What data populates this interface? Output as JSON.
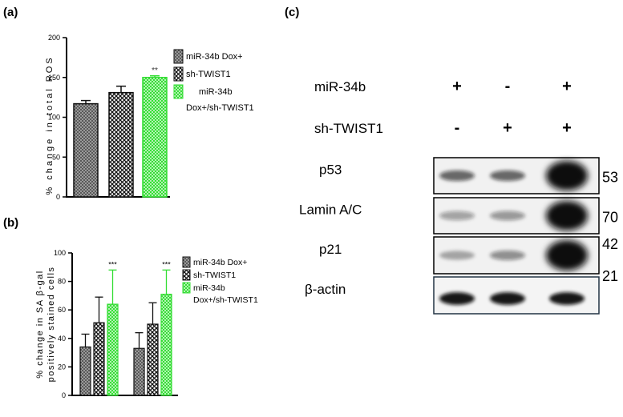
{
  "panels": {
    "a": "(a)",
    "b": "(b)",
    "c": "(c)"
  },
  "colors": {
    "bar_dark": "#6a6a6a",
    "bar_green": "#33dd33",
    "axis": "#000000",
    "blot_band": "#111111"
  },
  "chart_data": [
    {
      "panel": "(a)",
      "type": "bar",
      "ylabel": "% change in total ROS",
      "ylim": [
        0,
        200
      ],
      "yticks": [
        "0",
        "50",
        "100",
        "150",
        "200"
      ],
      "categories": [
        "miR-34b Dox+",
        "sh-TWIST1",
        "miR-34b Dox+/sh-TWIST1"
      ],
      "values": [
        117,
        131,
        150
      ],
      "errors": [
        4,
        8,
        2
      ],
      "significance": [
        "",
        "",
        "**"
      ],
      "legend": {
        "placement": "right",
        "entries": [
          {
            "label_lines": [
              "miR-34b Dox+"
            ],
            "pattern": "dots",
            "color": "#6a6a6a"
          },
          {
            "label_lines": [
              "sh-TWIST1"
            ],
            "pattern": "cross",
            "color": "#6a6a6a"
          },
          {
            "label_lines": [
              "miR-34b",
              "Dox+/sh-TWIST1"
            ],
            "pattern": "green",
            "color": "#33dd33"
          }
        ]
      }
    },
    {
      "panel": "(b)",
      "type": "bar",
      "ylabel_lines": [
        "% change in SA β-gal",
        "positively stained cells"
      ],
      "ylim": [
        0,
        100
      ],
      "yticks": [
        "0",
        "20",
        "40",
        "60",
        "80",
        "100"
      ],
      "groups": 2,
      "series": [
        {
          "name": "miR-34b Dox+",
          "values": [
            34,
            33
          ],
          "errors": [
            9,
            11
          ]
        },
        {
          "name": "sh-TWIST1",
          "values": [
            51,
            50
          ],
          "errors": [
            18,
            15
          ]
        },
        {
          "name": "miR-34b Dox+/sh-TWIST1",
          "values": [
            64,
            71
          ],
          "errors": [
            24,
            17
          ]
        }
      ],
      "significance": [
        "***",
        "***"
      ],
      "legend": {
        "placement": "right",
        "entries": [
          {
            "label_lines": [
              "miR-34b Dox+"
            ],
            "pattern": "dots",
            "color": "#6a6a6a"
          },
          {
            "label_lines": [
              "sh-TWIST1"
            ],
            "pattern": "cross",
            "color": "#6a6a6a"
          },
          {
            "label_lines": [
              "miR-34b",
              "Dox+/sh-TWIST1"
            ],
            "pattern": "green",
            "color": "#33dd33"
          }
        ]
      }
    }
  ],
  "blot": {
    "conditions": [
      {
        "label": "miR-34b",
        "signs": [
          "+",
          "-",
          "+"
        ]
      },
      {
        "label": "sh-TWIST1",
        "signs": [
          "-",
          "+",
          "+"
        ]
      }
    ],
    "rows": [
      {
        "label": "p53",
        "mw": "53",
        "intensity": [
          0.55,
          0.55,
          1.0
        ]
      },
      {
        "label": "Lamin A/C",
        "mw": "70",
        "intensity": [
          0.25,
          0.3,
          1.0
        ]
      },
      {
        "label": "p21",
        "mw": "42",
        "intensity": [
          0.2,
          0.35,
          1.0
        ]
      },
      {
        "label": "β-actin",
        "mw": "21",
        "intensity": [
          0.95,
          0.95,
          0.95
        ]
      }
    ]
  }
}
